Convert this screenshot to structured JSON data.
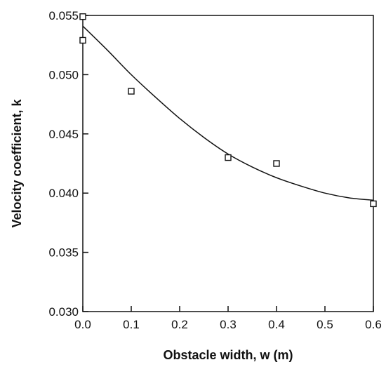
{
  "chart_data": {
    "type": "scatter",
    "title": "",
    "xlabel": "Obstacle width, w (m)",
    "ylabel": "Velocity coefficient, k",
    "xlim": [
      0,
      0.6
    ],
    "ylim": [
      0.03,
      0.055
    ],
    "x_ticks": [
      "0.0",
      "0.1",
      "0.2",
      "0.3",
      "0.4",
      "0.5",
      "0.6"
    ],
    "y_ticks": [
      "0.030",
      "0.035",
      "0.040",
      "0.045",
      "0.050",
      "0.055"
    ],
    "grid": false,
    "legend": "none",
    "series": [
      {
        "kind": "markers",
        "marker": "open-square",
        "x": [
          0.0,
          0.0,
          0.1,
          0.3,
          0.4,
          0.6
        ],
        "y": [
          0.0549,
          0.0529,
          0.0486,
          0.043,
          0.0425,
          0.0391
        ]
      },
      {
        "kind": "fit-curve",
        "x": [
          0.0,
          0.05,
          0.1,
          0.15,
          0.2,
          0.25,
          0.3,
          0.35,
          0.4,
          0.45,
          0.5,
          0.55,
          0.6
        ],
        "y": [
          0.0541,
          0.0521,
          0.05,
          0.0481,
          0.0463,
          0.0447,
          0.0433,
          0.0422,
          0.0413,
          0.0406,
          0.04,
          0.0396,
          0.0394
        ]
      }
    ]
  }
}
